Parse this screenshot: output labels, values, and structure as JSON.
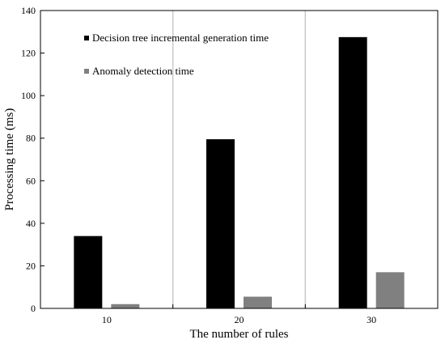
{
  "chart_data": {
    "type": "bar",
    "title": "",
    "xlabel": "The number of rules",
    "ylabel": "Processing time (ms)",
    "categories": [
      "10",
      "20",
      "30"
    ],
    "ylim": [
      0,
      140
    ],
    "yticks": [
      0,
      20,
      40,
      60,
      80,
      100,
      120,
      140
    ],
    "grid": false,
    "legend": "top-left",
    "series": [
      {
        "name": "Decision tree incremental generation time",
        "values": [
          34,
          79.5,
          127.5
        ],
        "color": "#000000"
      },
      {
        "name": "Anomaly detection time",
        "values": [
          2,
          5.5,
          17
        ],
        "color": "#808080"
      }
    ],
    "separator_color": "#c8c8c8"
  }
}
